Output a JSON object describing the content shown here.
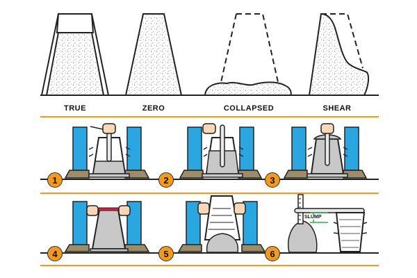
{
  "labels": {
    "true": "TRUE",
    "zero": "ZERO",
    "collapsed": "COLLAPSED",
    "shear": "SHEAR"
  },
  "steps": [
    "1",
    "2",
    "3",
    "4",
    "5",
    "6"
  ],
  "slump_label": "SLUMP",
  "colors": {
    "accent": "#f39a1e",
    "leg": "#2aa6e0",
    "skin": "#f7d7b8",
    "boot": "#9c8c6a",
    "concrete": "#c8c8c8",
    "rod": "#e8e8e8",
    "bar": "#e0193f",
    "slump_arrow": "#2bb24c"
  }
}
